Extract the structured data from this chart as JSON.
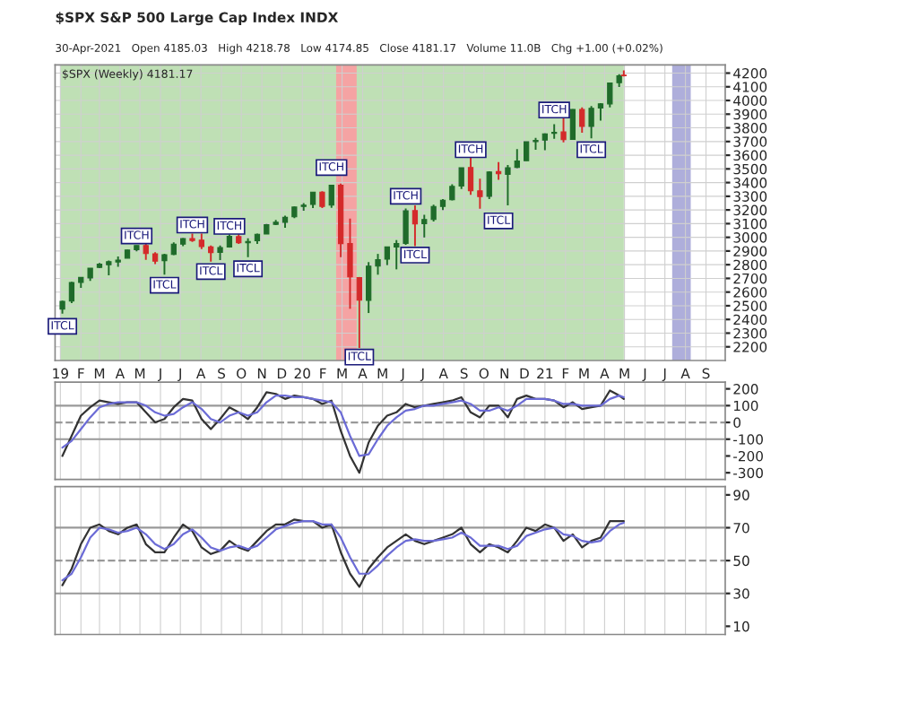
{
  "chart_data": [
    {
      "type": "candlestick",
      "title": "$SPX S&P 500 Large Cap Index INDX",
      "subtitle": "30-Apr-2021   Open 4185.03   High 4218.78   Low 4174.85   Close 4181.17   Volume 11.0B   Chg +1.00 (+0.02%)",
      "x": [
        "2019-01-04",
        "2019-01-18",
        "2019-02-01",
        "2019-02-15",
        "2019-03-01",
        "2019-03-15",
        "2019-03-29",
        "2019-04-12",
        "2019-04-26",
        "2019-05-10",
        "2019-05-24",
        "2019-06-07",
        "2019-06-21",
        "2019-07-05",
        "2019-07-19",
        "2019-08-02",
        "2019-08-16",
        "2019-08-30",
        "2019-09-13",
        "2019-09-27",
        "2019-10-11",
        "2019-10-25",
        "2019-11-08",
        "2019-11-22",
        "2019-12-06",
        "2019-12-20",
        "2020-01-03",
        "2020-01-17",
        "2020-01-31",
        "2020-02-14",
        "2020-02-28",
        "2020-03-13",
        "2020-03-27",
        "2020-04-10",
        "2020-04-24",
        "2020-05-08",
        "2020-05-22",
        "2020-06-05",
        "2020-06-19",
        "2020-07-03",
        "2020-07-17",
        "2020-07-31",
        "2020-08-14",
        "2020-08-28",
        "2020-09-11",
        "2020-09-25",
        "2020-10-09",
        "2020-10-23",
        "2020-11-06",
        "2020-11-20",
        "2020-12-04",
        "2020-12-18",
        "2021-01-01",
        "2021-01-15",
        "2021-01-29",
        "2021-02-12",
        "2021-02-26",
        "2021-03-12",
        "2021-03-26",
        "2021-04-09",
        "2021-04-23",
        "2021-04-30"
      ],
      "ohlc": [
        [
          2476,
          2538,
          2443,
          2532
        ],
        [
          2535,
          2675,
          2519,
          2670
        ],
        [
          2670,
          2708,
          2631,
          2707
        ],
        [
          2703,
          2775,
          2681,
          2775
        ],
        [
          2780,
          2813,
          2775,
          2804
        ],
        [
          2800,
          2830,
          2722,
          2822
        ],
        [
          2820,
          2860,
          2785,
          2834
        ],
        [
          2848,
          2910,
          2848,
          2907
        ],
        [
          2910,
          2940,
          2898,
          2940
        ],
        [
          2940,
          2954,
          2836,
          2881
        ],
        [
          2880,
          2892,
          2805,
          2826
        ],
        [
          2830,
          2880,
          2728,
          2873
        ],
        [
          2875,
          2964,
          2870,
          2950
        ],
        [
          2950,
          2995,
          2935,
          2990
        ],
        [
          2990,
          3028,
          2966,
          2977
        ],
        [
          2980,
          3028,
          2914,
          2932
        ],
        [
          2930,
          2940,
          2822,
          2889
        ],
        [
          2890,
          2940,
          2834,
          2926
        ],
        [
          2930,
          3021,
          2925,
          3007
        ],
        [
          3005,
          3022,
          2952,
          2961
        ],
        [
          2960,
          2993,
          2855,
          2970
        ],
        [
          2975,
          3027,
          2952,
          3022
        ],
        [
          3025,
          3097,
          3024,
          3093
        ],
        [
          3095,
          3127,
          3090,
          3110
        ],
        [
          3110,
          3158,
          3070,
          3146
        ],
        [
          3150,
          3226,
          3140,
          3221
        ],
        [
          3225,
          3250,
          3195,
          3235
        ],
        [
          3240,
          3330,
          3214,
          3330
        ],
        [
          3330,
          3337,
          3214,
          3225
        ],
        [
          3235,
          3385,
          3215,
          3380
        ],
        [
          3380,
          3393,
          2855,
          2954
        ],
        [
          2955,
          3137,
          2478,
          2711
        ],
        [
          2705,
          2710,
          2191,
          2541
        ],
        [
          2540,
          2819,
          2447,
          2790
        ],
        [
          2790,
          2879,
          2727,
          2837
        ],
        [
          2840,
          2930,
          2797,
          2930
        ],
        [
          2930,
          2980,
          2766,
          2955
        ],
        [
          2955,
          3211,
          2945,
          3194
        ],
        [
          3195,
          3233,
          2936,
          3098
        ],
        [
          3100,
          3165,
          2999,
          3130
        ],
        [
          3130,
          3238,
          3115,
          3225
        ],
        [
          3225,
          3280,
          3200,
          3271
        ],
        [
          3275,
          3387,
          3270,
          3372
        ],
        [
          3375,
          3509,
          3354,
          3508
        ],
        [
          3510,
          3588,
          3310,
          3341
        ],
        [
          3340,
          3428,
          3209,
          3298
        ],
        [
          3300,
          3482,
          3280,
          3477
        ],
        [
          3480,
          3550,
          3420,
          3465
        ],
        [
          3460,
          3529,
          3233,
          3509
        ],
        [
          3510,
          3645,
          3505,
          3558
        ],
        [
          3560,
          3699,
          3560,
          3699
        ],
        [
          3700,
          3726,
          3640,
          3709
        ],
        [
          3710,
          3760,
          3636,
          3756
        ],
        [
          3760,
          3826,
          3720,
          3768
        ],
        [
          3770,
          3870,
          3694,
          3714
        ],
        [
          3715,
          3937,
          3714,
          3934
        ],
        [
          3935,
          3950,
          3765,
          3811
        ],
        [
          3810,
          3960,
          3723,
          3943
        ],
        [
          3945,
          3981,
          3853,
          3975
        ],
        [
          3975,
          4129,
          3950,
          4128
        ],
        [
          4130,
          4192,
          4098,
          4180
        ],
        [
          4185,
          4219,
          4175,
          4181
        ]
      ],
      "xlim": [
        "2018-12-24",
        "2021-09-30"
      ],
      "ylim": [
        2100,
        4260
      ],
      "xticks": [
        {
          "value": "2019-01-01",
          "label": "19"
        },
        {
          "value": "2019-02-01",
          "label": "F"
        },
        {
          "value": "2019-03-01",
          "label": "M"
        },
        {
          "value": "2019-04-01",
          "label": "A"
        },
        {
          "value": "2019-05-01",
          "label": "M"
        },
        {
          "value": "2019-06-01",
          "label": "J"
        },
        {
          "value": "2019-07-01",
          "label": "J"
        },
        {
          "value": "2019-08-01",
          "label": "A"
        },
        {
          "value": "2019-09-01",
          "label": "S"
        },
        {
          "value": "2019-10-01",
          "label": "O"
        },
        {
          "value": "2019-11-01",
          "label": "N"
        },
        {
          "value": "2019-12-01",
          "label": "D"
        },
        {
          "value": "2020-01-01",
          "label": "20"
        },
        {
          "value": "2020-02-01",
          "label": "F"
        },
        {
          "value": "2020-03-01",
          "label": "M"
        },
        {
          "value": "2020-04-01",
          "label": "A"
        },
        {
          "value": "2020-05-01",
          "label": "M"
        },
        {
          "value": "2020-06-01",
          "label": "J"
        },
        {
          "value": "2020-07-01",
          "label": "J"
        },
        {
          "value": "2020-08-01",
          "label": "A"
        },
        {
          "value": "2020-09-01",
          "label": "S"
        },
        {
          "value": "2020-10-01",
          "label": "O"
        },
        {
          "value": "2020-11-01",
          "label": "N"
        },
        {
          "value": "2020-12-01",
          "label": "D"
        },
        {
          "value": "2021-01-01",
          "label": "21"
        },
        {
          "value": "2021-02-01",
          "label": "F"
        },
        {
          "value": "2021-03-01",
          "label": "M"
        },
        {
          "value": "2021-04-01",
          "label": "A"
        },
        {
          "value": "2021-05-01",
          "label": "M"
        },
        {
          "value": "2021-06-01",
          "label": "J"
        },
        {
          "value": "2021-07-01",
          "label": "J"
        },
        {
          "value": "2021-08-01",
          "label": "A"
        },
        {
          "value": "2021-09-01",
          "label": "S"
        }
      ],
      "yticks": [
        2200,
        2300,
        2400,
        2500,
        2600,
        2700,
        2800,
        2900,
        3000,
        3100,
        3200,
        3300,
        3400,
        3500,
        3600,
        3700,
        3800,
        3900,
        4000,
        4100,
        4200
      ],
      "grid": true,
      "bands": [
        {
          "axis": "x",
          "from": "2019-01-01",
          "to": "2021-04-30",
          "color": "#bfe0b5"
        },
        {
          "axis": "x",
          "from": "2020-02-21",
          "to": "2020-03-23",
          "color": "#f5a3a3"
        },
        {
          "axis": "x",
          "from": "2021-07-12",
          "to": "2021-08-09",
          "color": "#aeaedb"
        }
      ],
      "annotations": [
        "$SPX (Weekly) 4181.17",
        {
          "text": "ITCL",
          "x": "2019-01-04",
          "y": 2350
        },
        {
          "text": "ITCH",
          "x": "2019-04-26",
          "y": 3010
        },
        {
          "text": "ITCL",
          "x": "2019-06-07",
          "y": 2650
        },
        {
          "text": "ITCH",
          "x": "2019-07-19",
          "y": 3090
        },
        {
          "text": "ITCL",
          "x": "2019-08-16",
          "y": 2750
        },
        {
          "text": "ITCH",
          "x": "2019-09-13",
          "y": 3080
        },
        {
          "text": "ITCL",
          "x": "2019-10-11",
          "y": 2770
        },
        {
          "text": "ITCH",
          "x": "2020-02-14",
          "y": 3510
        },
        {
          "text": "ITCL",
          "x": "2020-03-27",
          "y": 2125
        },
        {
          "text": "ITCH",
          "x": "2020-06-05",
          "y": 3300
        },
        {
          "text": "ITCL",
          "x": "2020-06-19",
          "y": 2870
        },
        {
          "text": "ITCH",
          "x": "2020-09-11",
          "y": 3640
        },
        {
          "text": "ITCL",
          "x": "2020-10-23",
          "y": 3120
        },
        {
          "text": "ITCH",
          "x": "2021-01-15",
          "y": 3930
        },
        {
          "text": "ITCL",
          "x": "2021-03-12",
          "y": 3640
        }
      ]
    },
    {
      "type": "line",
      "x": [
        "2019-01-04",
        "2019-01-18",
        "2019-02-01",
        "2019-02-15",
        "2019-03-01",
        "2019-03-15",
        "2019-03-29",
        "2019-04-12",
        "2019-04-26",
        "2019-05-10",
        "2019-05-24",
        "2019-06-07",
        "2019-06-21",
        "2019-07-05",
        "2019-07-19",
        "2019-08-02",
        "2019-08-16",
        "2019-08-30",
        "2019-09-13",
        "2019-09-27",
        "2019-10-11",
        "2019-10-25",
        "2019-11-08",
        "2019-11-22",
        "2019-12-06",
        "2019-12-20",
        "2020-01-03",
        "2020-01-17",
        "2020-01-31",
        "2020-02-14",
        "2020-02-28",
        "2020-03-13",
        "2020-03-27",
        "2020-04-10",
        "2020-04-24",
        "2020-05-08",
        "2020-05-22",
        "2020-06-05",
        "2020-06-19",
        "2020-07-03",
        "2020-07-17",
        "2020-07-31",
        "2020-08-14",
        "2020-08-28",
        "2020-09-11",
        "2020-09-25",
        "2020-10-09",
        "2020-10-23",
        "2020-11-06",
        "2020-11-20",
        "2020-12-04",
        "2020-12-18",
        "2021-01-01",
        "2021-01-15",
        "2021-01-29",
        "2021-02-12",
        "2021-02-26",
        "2021-03-12",
        "2021-03-26",
        "2021-04-09",
        "2021-04-23",
        "2021-04-30"
      ],
      "series": [
        {
          "color": "#333333",
          "values": [
            -200,
            -80,
            40,
            90,
            130,
            120,
            110,
            120,
            120,
            60,
            0,
            20,
            90,
            140,
            130,
            20,
            -40,
            20,
            90,
            60,
            20,
            90,
            180,
            170,
            140,
            160,
            150,
            140,
            110,
            130,
            -50,
            -200,
            -300,
            -120,
            -20,
            40,
            60,
            110,
            90,
            100,
            110,
            120,
            130,
            150,
            60,
            30,
            100,
            100,
            30,
            140,
            160,
            140,
            140,
            130,
            90,
            120,
            80,
            90,
            100,
            190,
            160,
            140
          ]
        },
        {
          "color": "#6b6bd6",
          "values": [
            -150,
            -110,
            -40,
            30,
            90,
            110,
            120,
            120,
            120,
            100,
            60,
            40,
            50,
            90,
            120,
            80,
            20,
            0,
            40,
            60,
            40,
            60,
            120,
            160,
            160,
            150,
            150,
            140,
            130,
            120,
            60,
            -80,
            -200,
            -190,
            -100,
            -20,
            30,
            70,
            80,
            100,
            100,
            110,
            120,
            130,
            110,
            70,
            70,
            90,
            70,
            100,
            140,
            140,
            140,
            130,
            110,
            110,
            100,
            100,
            100,
            140,
            160,
            150
          ]
        }
      ],
      "xlim": [
        "2018-12-24",
        "2021-09-30"
      ],
      "ylim": [
        -340,
        240
      ],
      "yticks": [
        -300,
        -200,
        -100,
        0,
        100,
        200
      ],
      "grid": "x",
      "tick_labels": "y",
      "ref_lines": [
        {
          "axis": "y",
          "value": 100,
          "color": "#999999",
          "line_style": "solid"
        },
        {
          "axis": "y",
          "value": -100,
          "color": "#999999",
          "line_style": "solid"
        },
        {
          "axis": "y",
          "value": 0,
          "color": "#999999",
          "line_style": "dashed"
        }
      ]
    },
    {
      "type": "line",
      "x": [
        "2019-01-04",
        "2019-01-18",
        "2019-02-01",
        "2019-02-15",
        "2019-03-01",
        "2019-03-15",
        "2019-03-29",
        "2019-04-12",
        "2019-04-26",
        "2019-05-10",
        "2019-05-24",
        "2019-06-07",
        "2019-06-21",
        "2019-07-05",
        "2019-07-19",
        "2019-08-02",
        "2019-08-16",
        "2019-08-30",
        "2019-09-13",
        "2019-09-27",
        "2019-10-11",
        "2019-10-25",
        "2019-11-08",
        "2019-11-22",
        "2019-12-06",
        "2019-12-20",
        "2020-01-03",
        "2020-01-17",
        "2020-01-31",
        "2020-02-14",
        "2020-02-28",
        "2020-03-13",
        "2020-03-27",
        "2020-04-10",
        "2020-04-24",
        "2020-05-08",
        "2020-05-22",
        "2020-06-05",
        "2020-06-19",
        "2020-07-03",
        "2020-07-17",
        "2020-07-31",
        "2020-08-14",
        "2020-08-28",
        "2020-09-11",
        "2020-09-25",
        "2020-10-09",
        "2020-10-23",
        "2020-11-06",
        "2020-11-20",
        "2020-12-04",
        "2020-12-18",
        "2021-01-01",
        "2021-01-15",
        "2021-01-29",
        "2021-02-12",
        "2021-02-26",
        "2021-03-12",
        "2021-03-26",
        "2021-04-09",
        "2021-04-23",
        "2021-04-30"
      ],
      "series": [
        {
          "color": "#333333",
          "values": [
            35,
            45,
            60,
            70,
            72,
            68,
            66,
            70,
            72,
            60,
            55,
            55,
            64,
            72,
            68,
            58,
            54,
            56,
            62,
            58,
            56,
            62,
            68,
            72,
            72,
            75,
            74,
            74,
            70,
            72,
            55,
            42,
            34,
            45,
            52,
            58,
            62,
            66,
            62,
            60,
            62,
            64,
            66,
            70,
            60,
            55,
            60,
            58,
            55,
            62,
            70,
            68,
            72,
            70,
            62,
            66,
            58,
            62,
            64,
            74,
            74,
            74
          ]
        },
        {
          "color": "#6b6bd6",
          "values": [
            38,
            42,
            52,
            64,
            70,
            69,
            67,
            68,
            70,
            66,
            60,
            57,
            60,
            66,
            69,
            64,
            58,
            56,
            58,
            59,
            57,
            59,
            64,
            69,
            71,
            73,
            74,
            74,
            72,
            72,
            64,
            52,
            42,
            42,
            47,
            53,
            58,
            62,
            63,
            62,
            62,
            63,
            64,
            67,
            64,
            59,
            59,
            59,
            57,
            59,
            65,
            67,
            69,
            70,
            66,
            65,
            62,
            61,
            62,
            68,
            72,
            73
          ]
        }
      ],
      "xlim": [
        "2018-12-24",
        "2021-09-30"
      ],
      "ylim": [
        5,
        95
      ],
      "yticks": [
        10,
        30,
        50,
        70,
        90
      ],
      "grid": "x",
      "tick_labels": "y",
      "ref_lines": [
        {
          "axis": "y",
          "value": 70,
          "color": "#999999",
          "line_style": "solid"
        },
        {
          "axis": "y",
          "value": 30,
          "color": "#999999",
          "line_style": "solid"
        },
        {
          "axis": "y",
          "value": 50,
          "color": "#999999",
          "line_style": "dashed"
        }
      ]
    }
  ]
}
